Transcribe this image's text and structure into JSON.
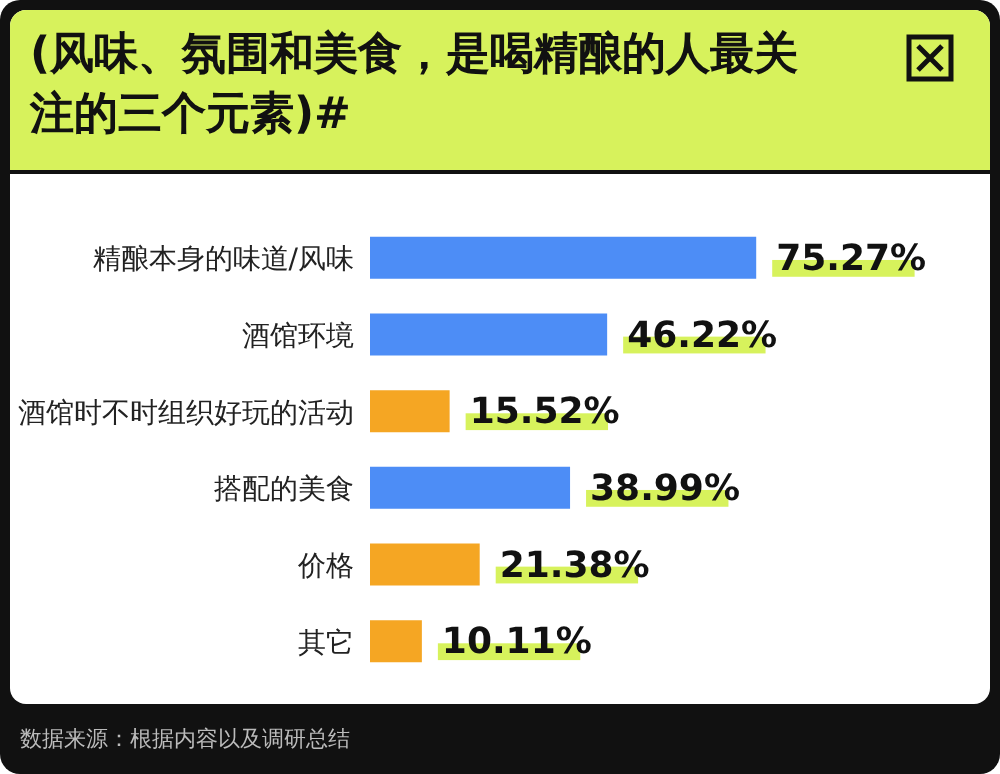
{
  "chart_data": {
    "type": "bar",
    "orientation": "horizontal",
    "title": "(风味、氛围和美食，是喝精酿的人最关注的三个元素)#",
    "categories": [
      "精酿本身的味道/风味",
      "酒馆环境",
      "酒馆时不时组织好玩的活动",
      "搭配的美食",
      "价格",
      "其它"
    ],
    "values": [
      75.27,
      46.22,
      15.52,
      38.99,
      21.38,
      10.11
    ],
    "value_labels": [
      "75.27%",
      "46.22%",
      "15.52%",
      "38.99%",
      "21.38%",
      "10.11%"
    ],
    "colors": [
      "#4d8df6",
      "#4d8df6",
      "#f5a623",
      "#4d8df6",
      "#f5a623",
      "#f5a623"
    ],
    "tick_labels": "y",
    "annotations": [
      "数据来源：根据内容以及调研总结"
    ]
  }
}
